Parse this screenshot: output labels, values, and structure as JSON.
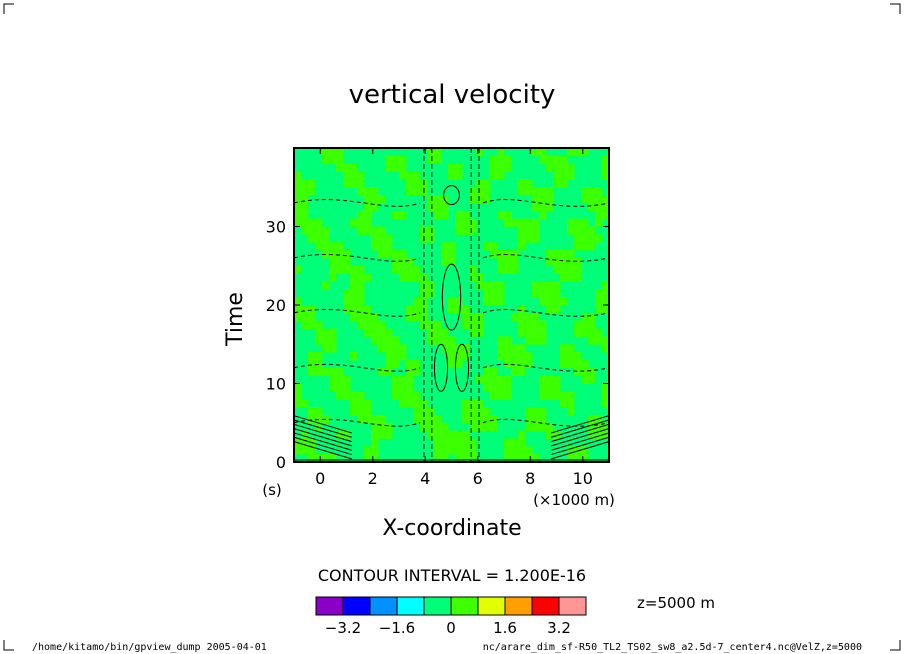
{
  "chart_data": {
    "type": "heatmap",
    "title": "vertical velocity",
    "xlabel": "X-coordinate",
    "ylabel": "Time",
    "x_unit": "(×1000 m)",
    "y_unit": "(s)",
    "x_ticks": [
      "0",
      "2",
      "4",
      "6",
      "8",
      "10"
    ],
    "y_ticks": [
      "0",
      "10",
      "20",
      "30"
    ],
    "xlim": [
      -1,
      11
    ],
    "ylim": [
      0,
      40
    ],
    "contour_interval": "CONTOUR INTERVAL = 1.200E-16",
    "level_note": "z=5000 m",
    "colorbar": {
      "colors": [
        "#8a00c8",
        "#0000ff",
        "#0090ff",
        "#00ffff",
        "#00ff78",
        "#3cff00",
        "#e1ff00",
        "#ffa000",
        "#ff0000",
        "#ff9696"
      ],
      "labels": [
        "−3.2",
        "−1.6",
        "0",
        "1.6",
        "3.2"
      ],
      "label_values": [
        -3.2,
        -1.6,
        0,
        1.6,
        3.2
      ]
    },
    "field_fill_colors": [
      "#00ff78",
      "#3cff00"
    ]
  },
  "footer": {
    "left": "/home/kitamo/bin/gpview_dump  2005-04-01",
    "right": "nc/arare_dim_sf-R50_TL2_TS02_sw8_a2.5d-7_center4.nc@VelZ,z=5000"
  }
}
